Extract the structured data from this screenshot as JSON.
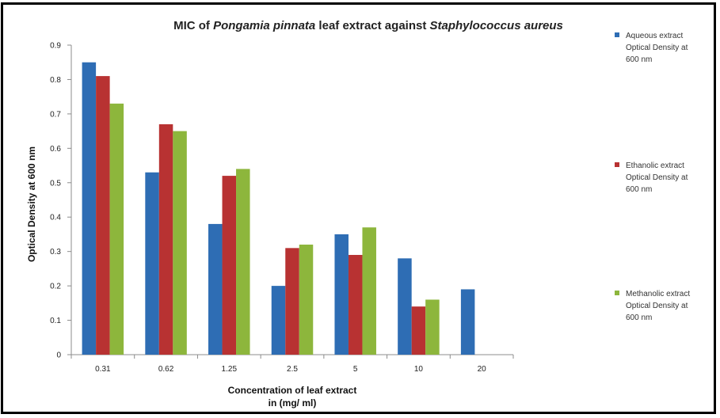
{
  "chart_data": {
    "type": "bar",
    "title_parts": [
      {
        "text": "MIC of ",
        "italic": false
      },
      {
        "text": "Pongamia pinnata",
        "italic": true
      },
      {
        "text": " leaf extract against ",
        "italic": false
      },
      {
        "text": "Staphylococcus aureus",
        "italic": true
      }
    ],
    "xlabel_lines": [
      "Concentration of leaf extract",
      "in (mg/ ml)"
    ],
    "ylabel": "Optical Density at 600 nm",
    "categories": [
      "0.31",
      "0.62",
      "1.25",
      "2.5",
      "5",
      "10",
      "20"
    ],
    "yticks": [
      "0",
      "0.1",
      "0.2",
      "0.3",
      "0.4",
      "0.5",
      "0.6",
      "0.7",
      "0.8",
      "0.9"
    ],
    "ylim": [
      0,
      0.9
    ],
    "grid": false,
    "legend_position": "right",
    "series": [
      {
        "name_lines": [
          "Aqueous extract",
          "Optical Density at",
          "600 nm"
        ],
        "color": "#2E6DB4",
        "values": [
          0.85,
          0.53,
          0.38,
          0.2,
          0.35,
          0.28,
          0.19
        ]
      },
      {
        "name_lines": [
          "Ethanolic extract",
          "Optical Density at",
          "600 nm"
        ],
        "color": "#B83232",
        "values": [
          0.81,
          0.67,
          0.52,
          0.31,
          0.29,
          0.14,
          null
        ]
      },
      {
        "name_lines": [
          "Methanolic extract",
          "Optical Density at",
          "600 nm"
        ],
        "color": "#8DB63C",
        "values": [
          0.73,
          0.65,
          0.54,
          0.32,
          0.37,
          0.16,
          null
        ]
      }
    ]
  }
}
